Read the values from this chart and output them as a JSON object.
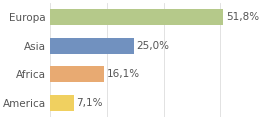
{
  "categories": [
    "Europa",
    "Asia",
    "Africa",
    "America"
  ],
  "values": [
    51.8,
    25.0,
    16.1,
    7.1
  ],
  "labels": [
    "51,8%",
    "25,0%",
    "16,1%",
    "7,1%"
  ],
  "bar_colors": [
    "#b5c98a",
    "#7191bf",
    "#e8aa72",
    "#f0d060"
  ],
  "background_color": "#ffffff",
  "plot_bg_color": "#ffffff",
  "xlim": [
    0,
    68
  ],
  "label_fontsize": 7.5,
  "tick_fontsize": 7.5,
  "grid_color": "#dddddd",
  "text_color": "#555555"
}
